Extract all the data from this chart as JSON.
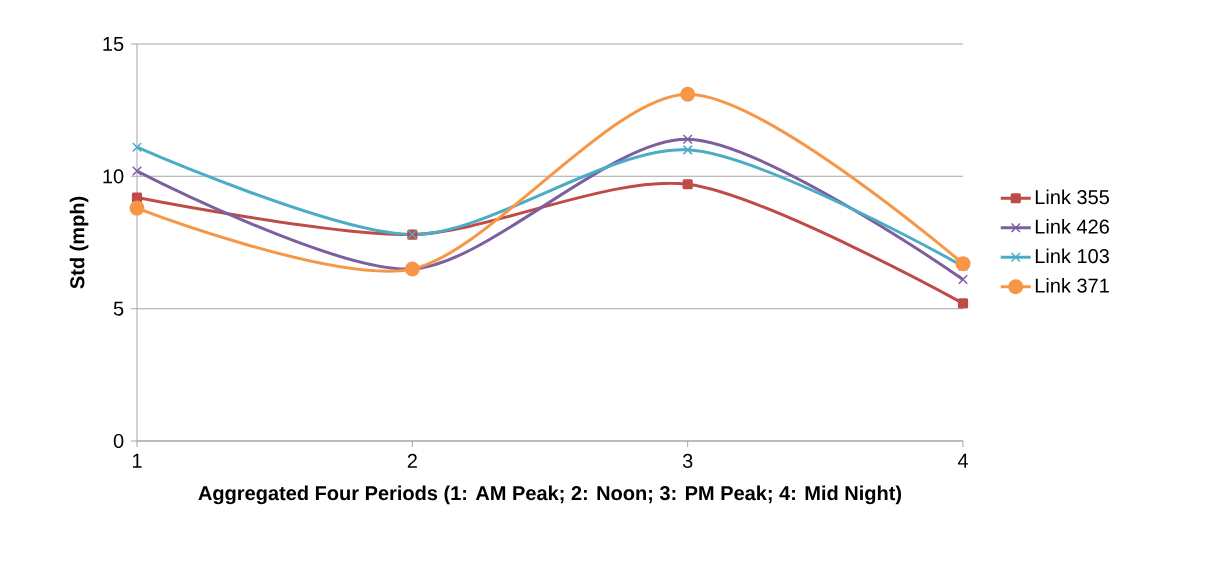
{
  "chart_data": {
    "type": "line",
    "xlabel": "Aggregated Four Periods (1: AM Peak; 2: Noon; 3: PM Peak; 4: Mid Night)",
    "ylabel": "Std (mph)",
    "x": [
      1,
      2,
      3,
      4
    ],
    "xlim": [
      1,
      4
    ],
    "xticks": [
      1,
      2,
      3,
      4
    ],
    "ylim": [
      0,
      15
    ],
    "yticks": [
      0,
      5,
      10,
      15
    ],
    "grid": "y",
    "legend": "right",
    "line_style": "solid",
    "series": [
      {
        "name": "Link 355",
        "color": "#be4b48",
        "marker": "square",
        "values": [
          9.2,
          7.8,
          9.7,
          5.2
        ]
      },
      {
        "name": "Link 426",
        "color": "#7d5fa0",
        "marker": "cross",
        "values": [
          10.2,
          6.5,
          11.4,
          6.1
        ]
      },
      {
        "name": "Link 103",
        "color": "#4bacc6",
        "marker": "cross",
        "values": [
          11.1,
          7.8,
          11.0,
          6.6
        ]
      },
      {
        "name": "Link 371",
        "color": "#f79646",
        "marker": "circle",
        "values": [
          8.8,
          6.5,
          13.1,
          6.7
        ]
      }
    ]
  }
}
